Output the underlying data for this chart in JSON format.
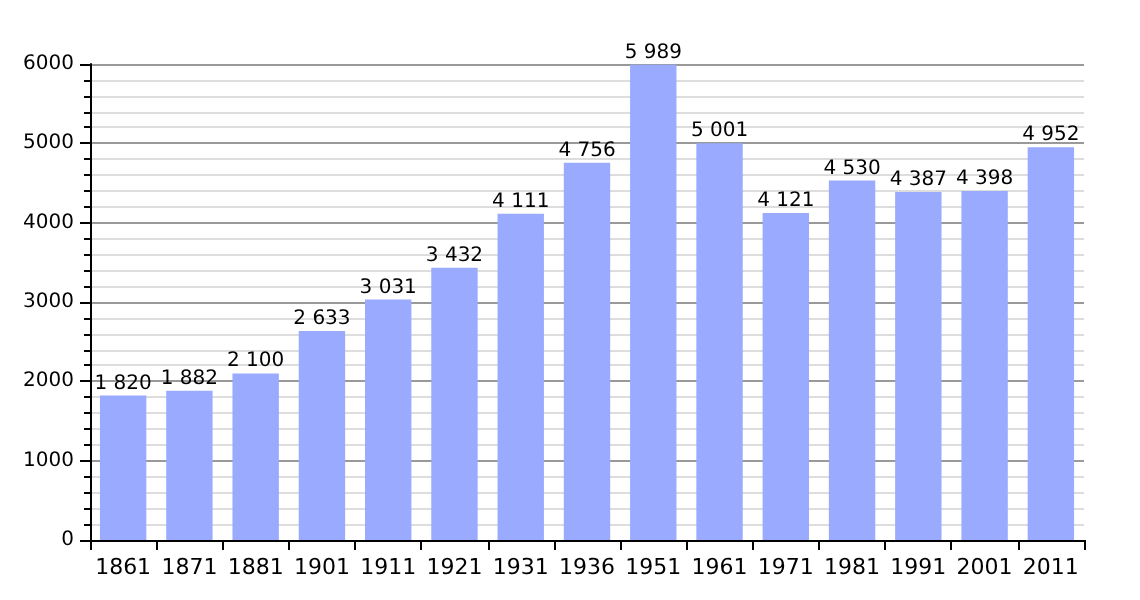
{
  "chart_data": {
    "type": "bar",
    "categories": [
      "1861",
      "1871",
      "1881",
      "1901",
      "1911",
      "1921",
      "1931",
      "1936",
      "1951",
      "1961",
      "1971",
      "1981",
      "1991",
      "2001",
      "2011"
    ],
    "values": [
      1820,
      1882,
      2100,
      2633,
      3031,
      3432,
      4111,
      4756,
      5989,
      5001,
      4121,
      4530,
      4387,
      4398,
      4952
    ],
    "value_labels": [
      "1 820",
      "1 882",
      "2 100",
      "2 633",
      "3 031",
      "3 432",
      "4 111",
      "4 756",
      "5 989",
      "5 001",
      "4 121",
      "4 530",
      "4 387",
      "4 398",
      "4 952"
    ],
    "color": "#99aaff",
    "ylim": [
      0,
      6000
    ],
    "yticks": [
      0,
      1000,
      2000,
      3000,
      4000,
      5000,
      6000
    ],
    "grid": "y"
  }
}
